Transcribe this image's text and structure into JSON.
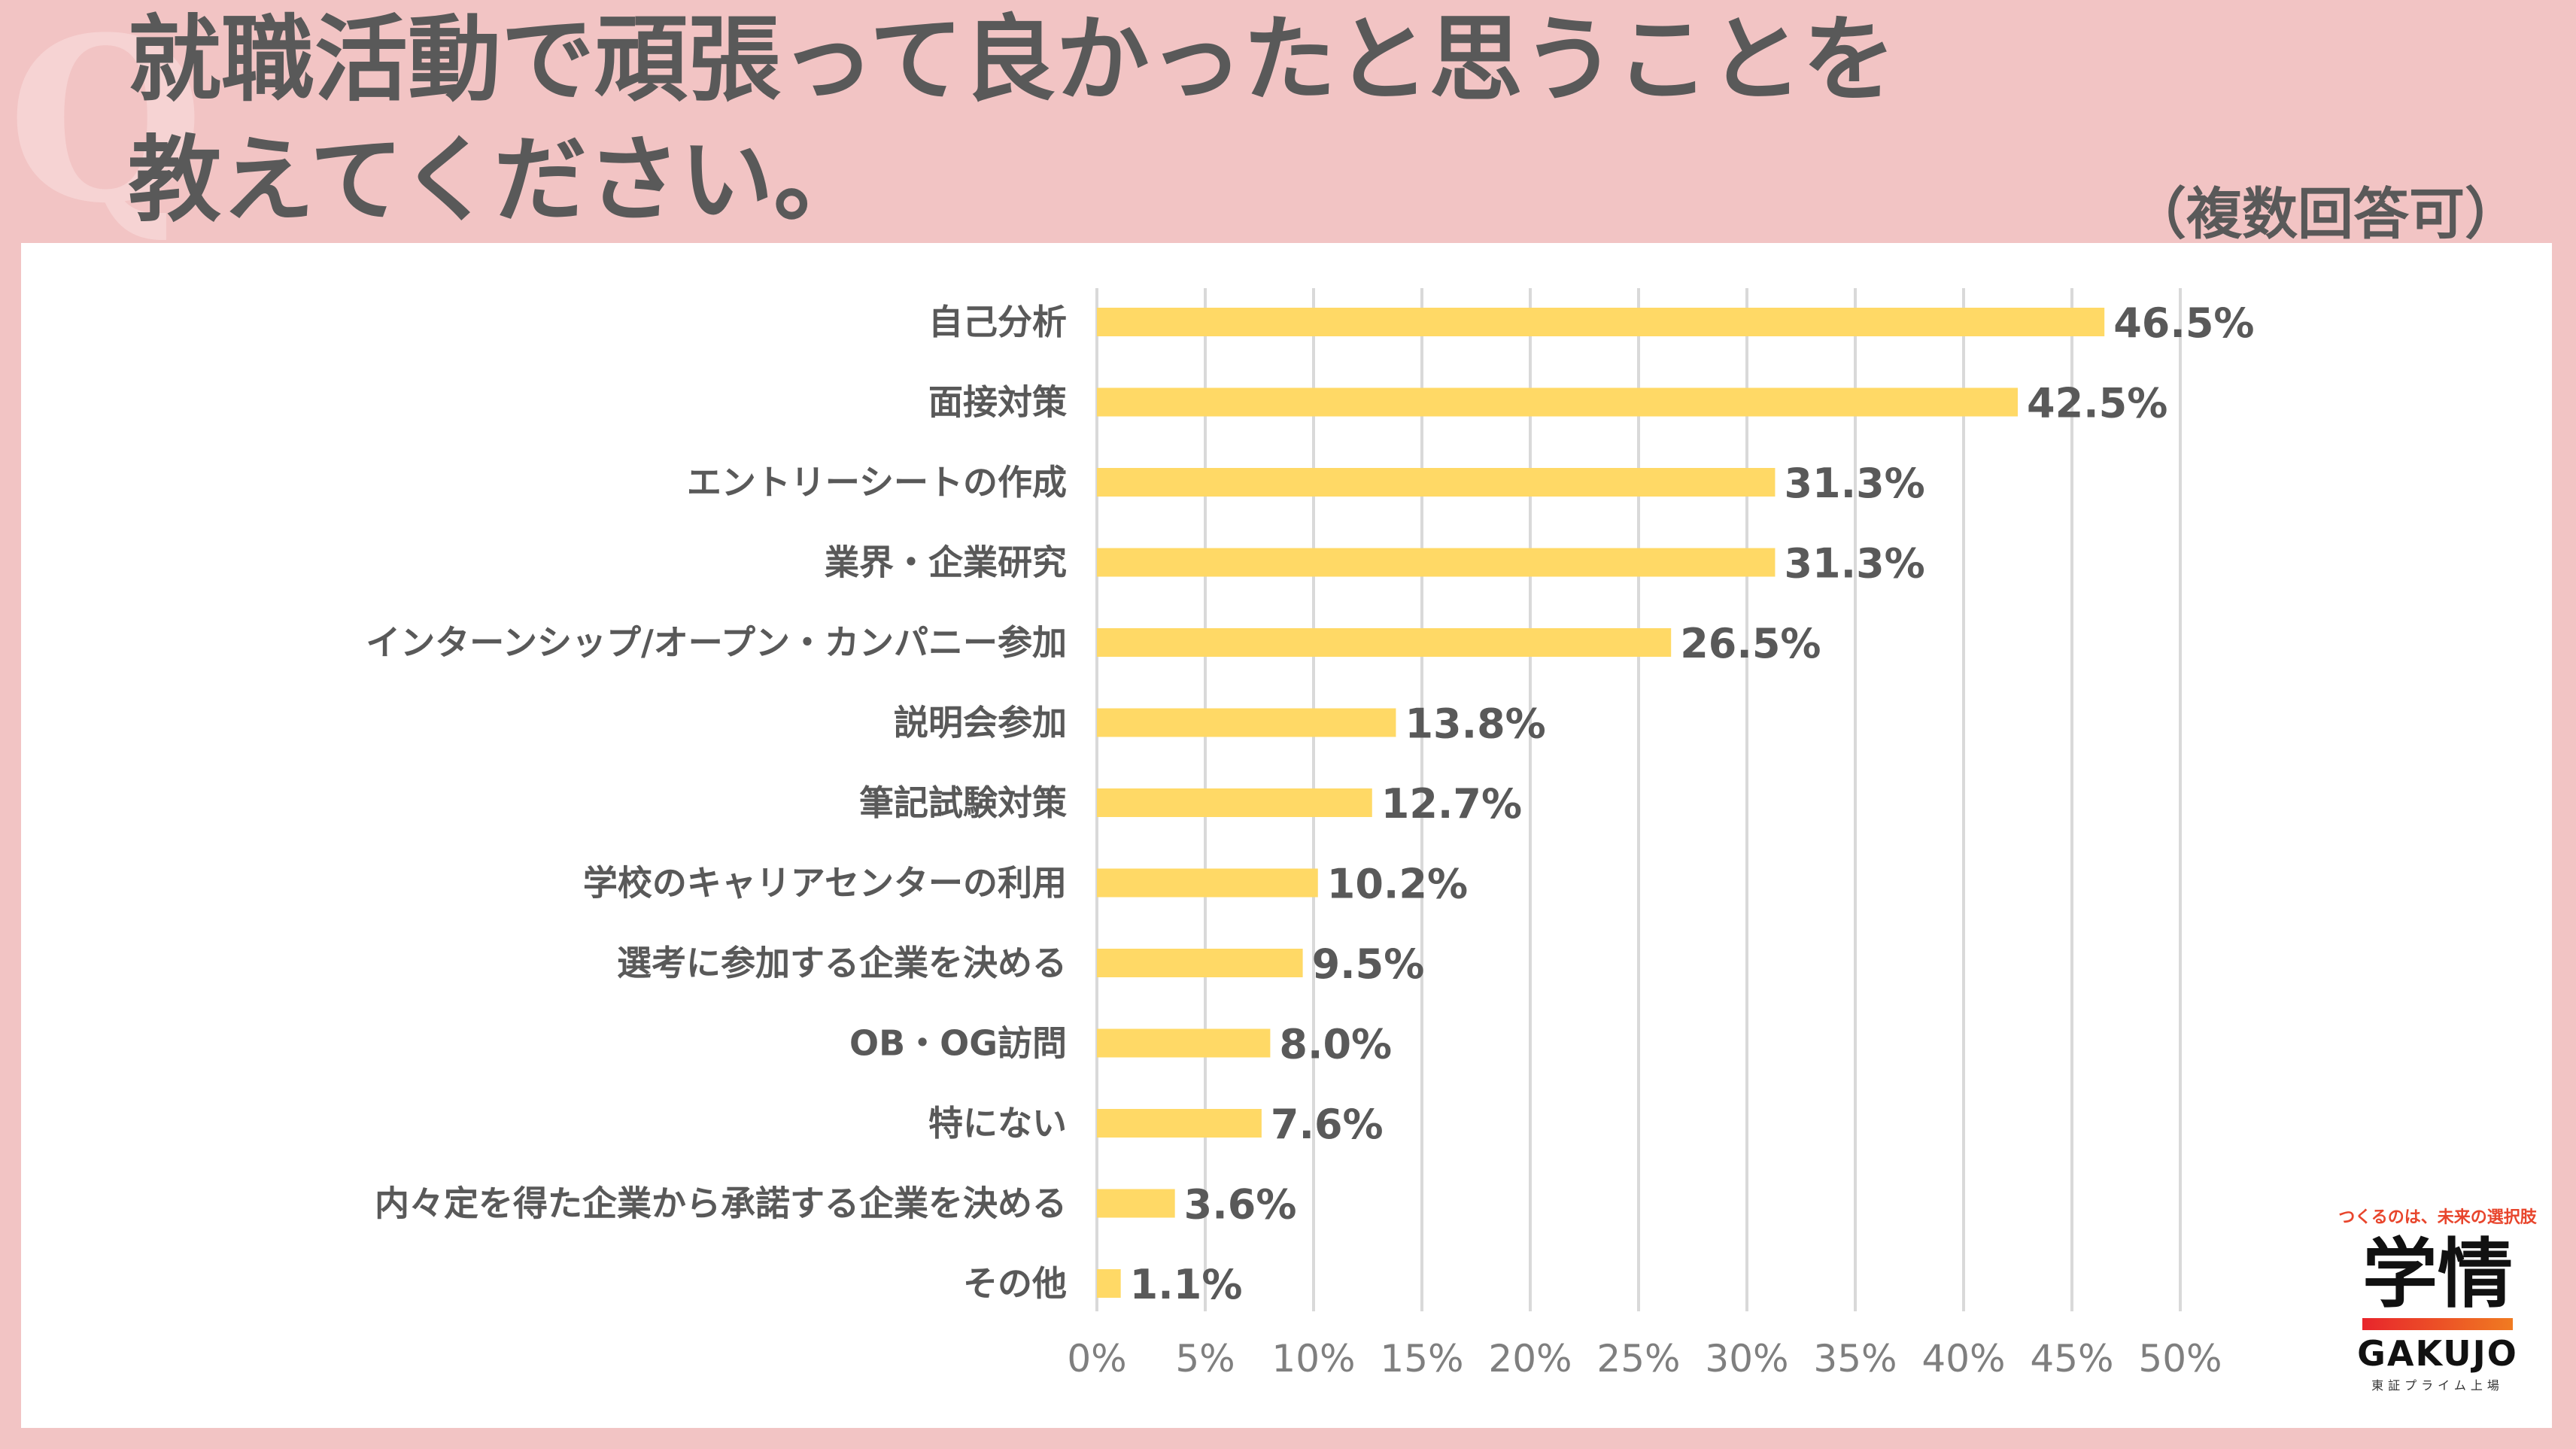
{
  "header": {
    "question_mark": "Q",
    "title": "就職活動で頑張って良かったと思うことを\n教えてください。",
    "note": "（複数回答可）"
  },
  "brand": {
    "tagline": "つくるのは、未来の選択肢",
    "mark": "学情",
    "name": "GAKUJO",
    "sub": "東証プライム上場"
  },
  "colors": {
    "bar": "#ffd966",
    "grid": "#d9d9d9",
    "label": "#595959",
    "tick": "#7f7f7f"
  },
  "chart_data": {
    "type": "bar",
    "orientation": "horizontal",
    "title": "就職活動で頑張って良かったと思うことを教えてください。（複数回答可）",
    "categories": [
      "自己分析",
      "面接対策",
      "エントリーシートの作成",
      "業界・企業研究",
      "インターンシップ/オープン・カンパニー参加",
      "説明会参加",
      "筆記試験対策",
      "学校のキャリアセンターの利用",
      "選考に参加する企業を決める",
      "OB・OG訪問",
      "特にない",
      "内々定を得た企業から承諾する企業を決める",
      "その他"
    ],
    "values": [
      46.5,
      42.5,
      31.3,
      31.3,
      26.5,
      13.8,
      12.7,
      10.2,
      9.5,
      8.0,
      7.6,
      3.6,
      1.1
    ],
    "value_labels": [
      "46.5%",
      "42.5%",
      "31.3%",
      "31.3%",
      "26.5%",
      "13.8%",
      "12.7%",
      "10.2%",
      "9.5%",
      "8.0%",
      "7.6%",
      "3.6%",
      "1.1%"
    ],
    "xlim": [
      0,
      50
    ],
    "xticks": [
      0,
      5,
      10,
      15,
      20,
      25,
      30,
      35,
      40,
      45,
      50
    ],
    "xtick_labels": [
      "0%",
      "5%",
      "10%",
      "15%",
      "20%",
      "25%",
      "30%",
      "35%",
      "40%",
      "45%",
      "50%"
    ],
    "grid": true,
    "legend": "none"
  }
}
